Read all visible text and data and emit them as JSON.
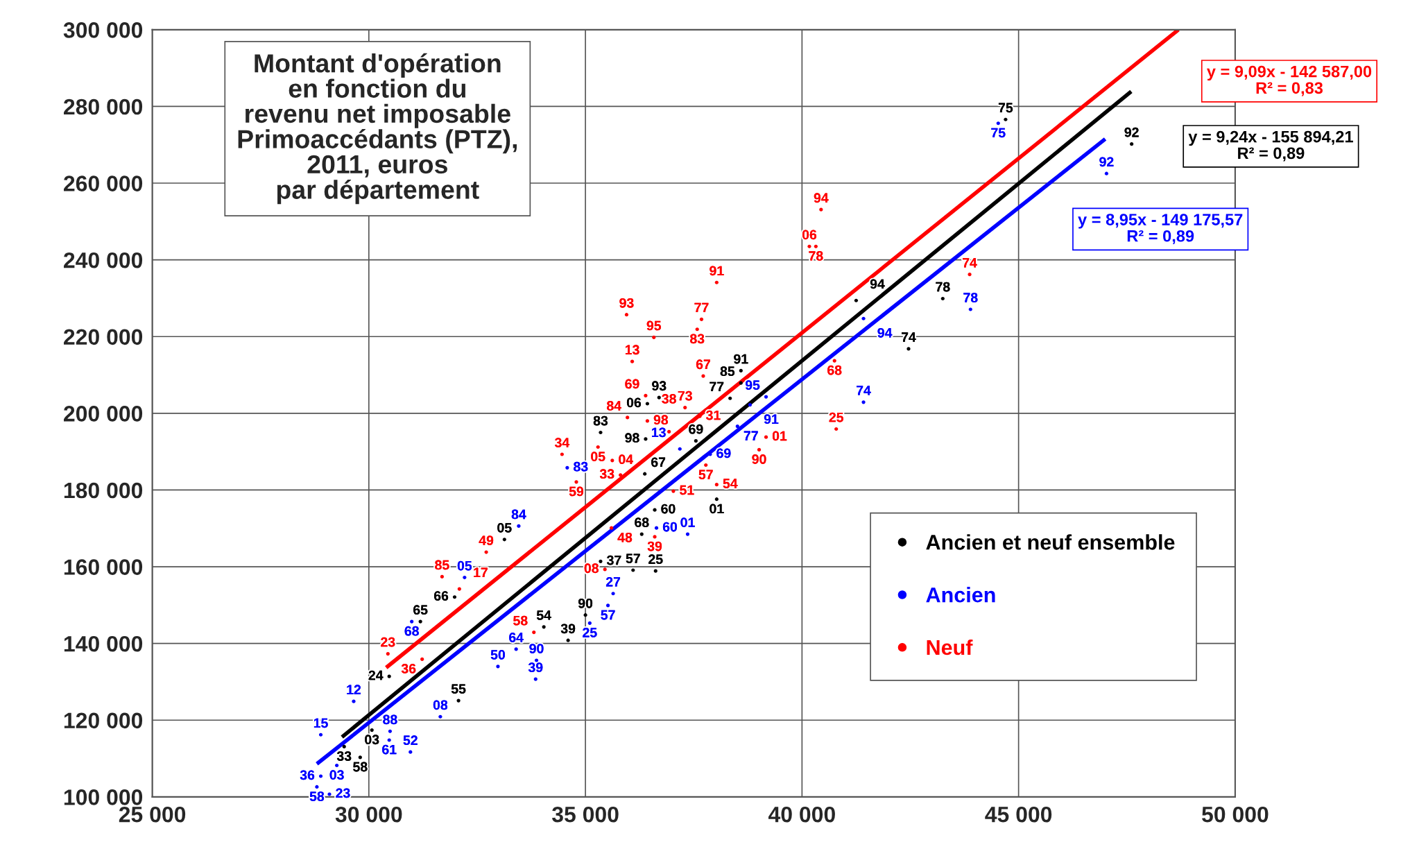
{
  "chart_data": {
    "type": "scatter",
    "title": "Montant d'opération\nen fonction du\nrevenu net imposable\nPrimoaccédants (PTZ),\n2011, euros\npar département",
    "xlim": [
      25000,
      50000
    ],
    "ylim": [
      100000,
      300000
    ],
    "xticks": [
      {
        "value": 25000,
        "label": "25 000"
      },
      {
        "value": 30000,
        "label": "30 000"
      },
      {
        "value": 35000,
        "label": "35 000"
      },
      {
        "value": 40000,
        "label": "40 000"
      },
      {
        "value": 45000,
        "label": "45 000"
      },
      {
        "value": 50000,
        "label": "50 000"
      }
    ],
    "yticks": [
      {
        "value": 100000,
        "label": "100 000"
      },
      {
        "value": 120000,
        "label": "120 000"
      },
      {
        "value": 140000,
        "label": "140 000"
      },
      {
        "value": 160000,
        "label": "160 000"
      },
      {
        "value": 180000,
        "label": "180 000"
      },
      {
        "value": 200000,
        "label": "200 000"
      },
      {
        "value": 220000,
        "label": "220 000"
      },
      {
        "value": 240000,
        "label": "240 000"
      },
      {
        "value": 260000,
        "label": "260 000"
      },
      {
        "value": 280000,
        "label": "280 000"
      },
      {
        "value": 300000,
        "label": "300 000"
      }
    ],
    "grid": true,
    "legend": "bottom right",
    "series": [
      {
        "name": "Ancien et neuf ensemble",
        "color": "#000000",
        "marker": "circle",
        "x": [
          44700,
          47610,
          41250,
          43250,
          42460,
          38590,
          38590,
          38340,
          36700,
          36430,
          35350,
          36390,
          37550,
          36370,
          36600,
          36300,
          36100,
          36620,
          38030,
          35000,
          34040,
          34600,
          35350,
          33130,
          31980,
          31190,
          30470,
          30070,
          29800,
          29430,
          32070
        ],
        "values": [
          276600,
          270200,
          229400,
          229900,
          216800,
          211100,
          207900,
          203900,
          204100,
          202500,
          195000,
          193300,
          192800,
          184200,
          174800,
          168500,
          159100,
          158900,
          177600,
          147400,
          144300,
          140800,
          161400,
          167100,
          152100,
          145700,
          131400,
          117400,
          110300,
          113100,
          125100
        ]
      },
      {
        "name": "Ancien",
        "color": "#0000ff",
        "marker": "circle",
        "x": [
          44530,
          47030,
          41420,
          43890,
          41420,
          39170,
          38800,
          38510,
          37880,
          37180,
          36640,
          37360,
          34580,
          33460,
          32210,
          30990,
          35640,
          35520,
          35100,
          33870,
          33850,
          33400,
          32980,
          31650,
          30960,
          30470,
          30490,
          28890,
          29260,
          28890,
          28800,
          29090,
          29650
        ],
        "values": [
          275600,
          262500,
          224700,
          227100,
          202900,
          204300,
          202200,
          196600,
          189300,
          190700,
          170100,
          168500,
          185800,
          170600,
          157200,
          145700,
          153000,
          149900,
          145300,
          135600,
          130700,
          138500,
          134000,
          120900,
          111700,
          114800,
          117100,
          116200,
          108200,
          105400,
          102600,
          100700,
          124900
        ]
      },
      {
        "name": "Neuf",
        "color": "#ff0000",
        "marker": "circle",
        "x": [
          40440,
          40170,
          40320,
          43870,
          38030,
          35950,
          37680,
          37580,
          36580,
          36080,
          37720,
          40750,
          36390,
          37300,
          37640,
          35970,
          36430,
          36930,
          40790,
          39170,
          39010,
          35290,
          35620,
          34460,
          37780,
          35810,
          38030,
          37030,
          34790,
          36600,
          35450,
          32710,
          31690,
          32090,
          33810,
          30440,
          31230,
          35600
        ],
        "values": [
          253100,
          243500,
          243500,
          236200,
          234100,
          225700,
          224500,
          221900,
          219800,
          213500,
          209700,
          213700,
          204600,
          201500,
          199200,
          198900,
          198000,
          195200,
          195900,
          193800,
          190500,
          191200,
          187700,
          189300,
          186500,
          183900,
          181400,
          179700,
          182100,
          167800,
          159300,
          163800,
          157400,
          154200,
          142900,
          137300,
          135900,
          170100
        ]
      },
      {
        "type": "line",
        "color": "#ff0000",
        "x": [
          30400,
          48690
        ],
        "values": [
          133700,
          300000
        ]
      },
      {
        "type": "line",
        "color": "#000000",
        "x": [
          29380,
          47600
        ],
        "values": [
          115600,
          283900
        ]
      },
      {
        "type": "line",
        "color": "#0000ff",
        "x": [
          28800,
          47000
        ],
        "values": [
          108600,
          271500
        ]
      }
    ],
    "annotations": [
      "y = 9,09x - 142 587,00\nR² = 0,83",
      "y = 9,24x - 155 894,21\nR² = 0,89",
      "y = 8,95x - 149 175,57\nR² = 0,89",
      {
        "text": "75",
        "x": 44700,
        "y": 276600
      },
      {
        "text": "92",
        "x": 47610,
        "y": 270200
      },
      {
        "text": "94",
        "x": 41250,
        "y": 229400
      },
      {
        "text": "78",
        "x": 43250,
        "y": 229900
      },
      {
        "text": "74",
        "x": 42460,
        "y": 216800
      },
      {
        "text": "91",
        "x": 38590,
        "y": 211100
      },
      {
        "text": "85",
        "x": 38590,
        "y": 207900
      },
      {
        "text": "77",
        "x": 38340,
        "y": 203900
      },
      {
        "text": "93",
        "x": 36700,
        "y": 204100
      },
      {
        "text": "06",
        "x": 36430,
        "y": 202500
      },
      {
        "text": "83",
        "x": 35350,
        "y": 195000
      },
      {
        "text": "98",
        "x": 36390,
        "y": 193300
      },
      {
        "text": "69",
        "x": 37550,
        "y": 192800
      },
      {
        "text": "67",
        "x": 36370,
        "y": 184200
      },
      {
        "text": "60",
        "x": 36600,
        "y": 174800
      },
      {
        "text": "68",
        "x": 36300,
        "y": 168500
      },
      {
        "text": "57",
        "x": 36100,
        "y": 159100
      },
      {
        "text": "25",
        "x": 36620,
        "y": 158900
      },
      {
        "text": "01",
        "x": 38030,
        "y": 177600
      },
      {
        "text": "90",
        "x": 35000,
        "y": 147400
      },
      {
        "text": "54",
        "x": 34040,
        "y": 144300
      },
      {
        "text": "39",
        "x": 34600,
        "y": 140800
      },
      {
        "text": "37",
        "x": 35350,
        "y": 161400
      },
      {
        "text": "05",
        "x": 33130,
        "y": 167100
      },
      {
        "text": "66",
        "x": 31980,
        "y": 152100
      },
      {
        "text": "65",
        "x": 31190,
        "y": 145700
      },
      {
        "text": "24",
        "x": 30470,
        "y": 131400
      },
      {
        "text": "03",
        "x": 30070,
        "y": 117400
      },
      {
        "text": "58",
        "x": 29800,
        "y": 110300
      },
      {
        "text": "33",
        "x": 29430,
        "y": 113100
      },
      {
        "text": "55",
        "x": 32070,
        "y": 125100
      },
      {
        "text": "75",
        "x": 44530,
        "y": 275600
      },
      {
        "text": "92",
        "x": 47030,
        "y": 262500
      },
      {
        "text": "94",
        "x": 41420,
        "y": 224700
      },
      {
        "text": "78",
        "x": 43890,
        "y": 227100
      },
      {
        "text": "74",
        "x": 41420,
        "y": 202900
      },
      {
        "text": "95",
        "x": 39170,
        "y": 204300
      },
      {
        "text": "91",
        "x": 38800,
        "y": 202200
      },
      {
        "text": "77",
        "x": 38510,
        "y": 196600
      },
      {
        "text": "69",
        "x": 37880,
        "y": 189300
      },
      {
        "text": "13",
        "x": 37180,
        "y": 190700
      },
      {
        "text": "60",
        "x": 36640,
        "y": 170100
      },
      {
        "text": "01",
        "x": 37360,
        "y": 168500
      },
      {
        "text": "83",
        "x": 34580,
        "y": 185800
      },
      {
        "text": "84",
        "x": 33460,
        "y": 170600
      },
      {
        "text": "05",
        "x": 32210,
        "y": 157200
      },
      {
        "text": "68",
        "x": 30990,
        "y": 145700
      },
      {
        "text": "27",
        "x": 35640,
        "y": 153000
      },
      {
        "text": "57",
        "x": 35520,
        "y": 149900
      },
      {
        "text": "25",
        "x": 35100,
        "y": 145300
      },
      {
        "text": "90",
        "x": 33870,
        "y": 135600
      },
      {
        "text": "39",
        "x": 33850,
        "y": 130700
      },
      {
        "text": "64",
        "x": 33400,
        "y": 138500
      },
      {
        "text": "50",
        "x": 32980,
        "y": 134000
      },
      {
        "text": "08",
        "x": 31650,
        "y": 120900
      },
      {
        "text": "52",
        "x": 30960,
        "y": 111700
      },
      {
        "text": "61",
        "x": 30470,
        "y": 114800
      },
      {
        "text": "88",
        "x": 30490,
        "y": 117100
      },
      {
        "text": "15",
        "x": 28890,
        "y": 116200
      },
      {
        "text": "03",
        "x": 29260,
        "y": 108200
      },
      {
        "text": "36",
        "x": 28890,
        "y": 105400
      },
      {
        "text": "58",
        "x": 28800,
        "y": 102600
      },
      {
        "text": "23",
        "x": 29090,
        "y": 100700
      },
      {
        "text": "12",
        "x": 29650,
        "y": 124900
      },
      {
        "text": "94",
        "x": 40440,
        "y": 253100
      },
      {
        "text": "06",
        "x": 40170,
        "y": 243500
      },
      {
        "text": "78",
        "x": 40320,
        "y": 243500
      },
      {
        "text": "74",
        "x": 43870,
        "y": 236200
      },
      {
        "text": "91",
        "x": 38030,
        "y": 234100
      },
      {
        "text": "93",
        "x": 35950,
        "y": 225700
      },
      {
        "text": "77",
        "x": 37680,
        "y": 224500
      },
      {
        "text": "83",
        "x": 37580,
        "y": 221900
      },
      {
        "text": "95",
        "x": 36580,
        "y": 219800
      },
      {
        "text": "13",
        "x": 36080,
        "y": 213500
      },
      {
        "text": "67",
        "x": 37720,
        "y": 209700
      },
      {
        "text": "68",
        "x": 40750,
        "y": 213700
      },
      {
        "text": "69",
        "x": 36390,
        "y": 204600
      },
      {
        "text": "73",
        "x": 37300,
        "y": 201500
      },
      {
        "text": "31",
        "x": 37640,
        "y": 199200
      },
      {
        "text": "84",
        "x": 35970,
        "y": 198900
      },
      {
        "text": "98",
        "x": 36430,
        "y": 198000
      },
      {
        "text": "38",
        "x": 36930,
        "y": 195200
      },
      {
        "text": "25",
        "x": 40790,
        "y": 195900
      },
      {
        "text": "01",
        "x": 39170,
        "y": 193800
      },
      {
        "text": "90",
        "x": 39010,
        "y": 190500
      },
      {
        "text": "05",
        "x": 35290,
        "y": 191200
      },
      {
        "text": "04",
        "x": 35620,
        "y": 187700
      },
      {
        "text": "34",
        "x": 34460,
        "y": 189300
      },
      {
        "text": "57",
        "x": 37780,
        "y": 186500
      },
      {
        "text": "33",
        "x": 35810,
        "y": 183900
      },
      {
        "text": "54",
        "x": 38030,
        "y": 181400
      },
      {
        "text": "51",
        "x": 37030,
        "y": 179700
      },
      {
        "text": "59",
        "x": 34790,
        "y": 182100
      },
      {
        "text": "39",
        "x": 36600,
        "y": 167800
      },
      {
        "text": "08",
        "x": 35450,
        "y": 159300
      },
      {
        "text": "49",
        "x": 32710,
        "y": 163800
      },
      {
        "text": "85",
        "x": 31690,
        "y": 157400
      },
      {
        "text": "17",
        "x": 32090,
        "y": 154200
      },
      {
        "text": "58",
        "x": 33810,
        "y": 142900
      },
      {
        "text": "23",
        "x": 30440,
        "y": 137300
      },
      {
        "text": "36",
        "x": 31230,
        "y": 135900
      },
      {
        "text": "48",
        "x": 35600,
        "y": 170100
      }
    ]
  }
}
